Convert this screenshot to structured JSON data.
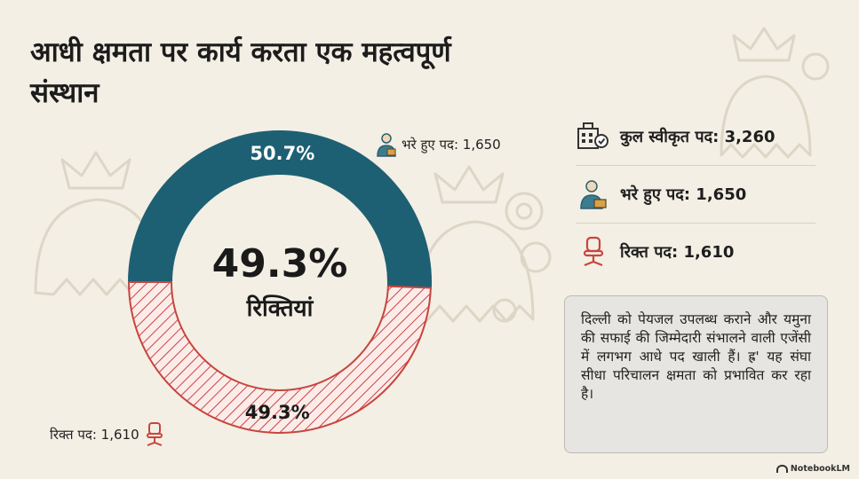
{
  "title": "आधी क्षमता पर कार्य करता एक महत्वपूर्ण संस्थान",
  "center": {
    "percent": "49.3%",
    "label": "रिक्तियां"
  },
  "callouts": {
    "filled": "भरे हुए पद: 1,650",
    "vacant": "रिक्त पद: 1,610"
  },
  "stats": [
    {
      "icon": "building-badge-icon",
      "label": "कुल स्वीकृत पद: 3,260"
    },
    {
      "icon": "employee-icon",
      "label": "भरे हुए पद: 1,650"
    },
    {
      "icon": "office-chair-icon",
      "label": "रिक्त पद: 1,610"
    }
  ],
  "note": "दिल्ली को पेयजल उपलब्ध कराने और यमुना की सफाई की जिम्मेदारी संभालने वाली एजेंसी में लगभग आधे पद खाली हैं। ह्र' यह संघा सीधा परिचालन क्षमता को प्रभावित कर रहा है।",
  "brand": "NotebookLM",
  "colors": {
    "filled": "#1e6073",
    "vacant": "#c8453e",
    "vacant_hatch_bg": "#fbecea",
    "background": "#f3efe4"
  },
  "chart_data": {
    "type": "pie",
    "style": "donut",
    "categories": [
      "भरे हुए पद",
      "रिक्त पद"
    ],
    "values": [
      1650,
      1610
    ],
    "percent_labels": [
      "50.7%",
      "49.3%"
    ],
    "total": 3260
  }
}
